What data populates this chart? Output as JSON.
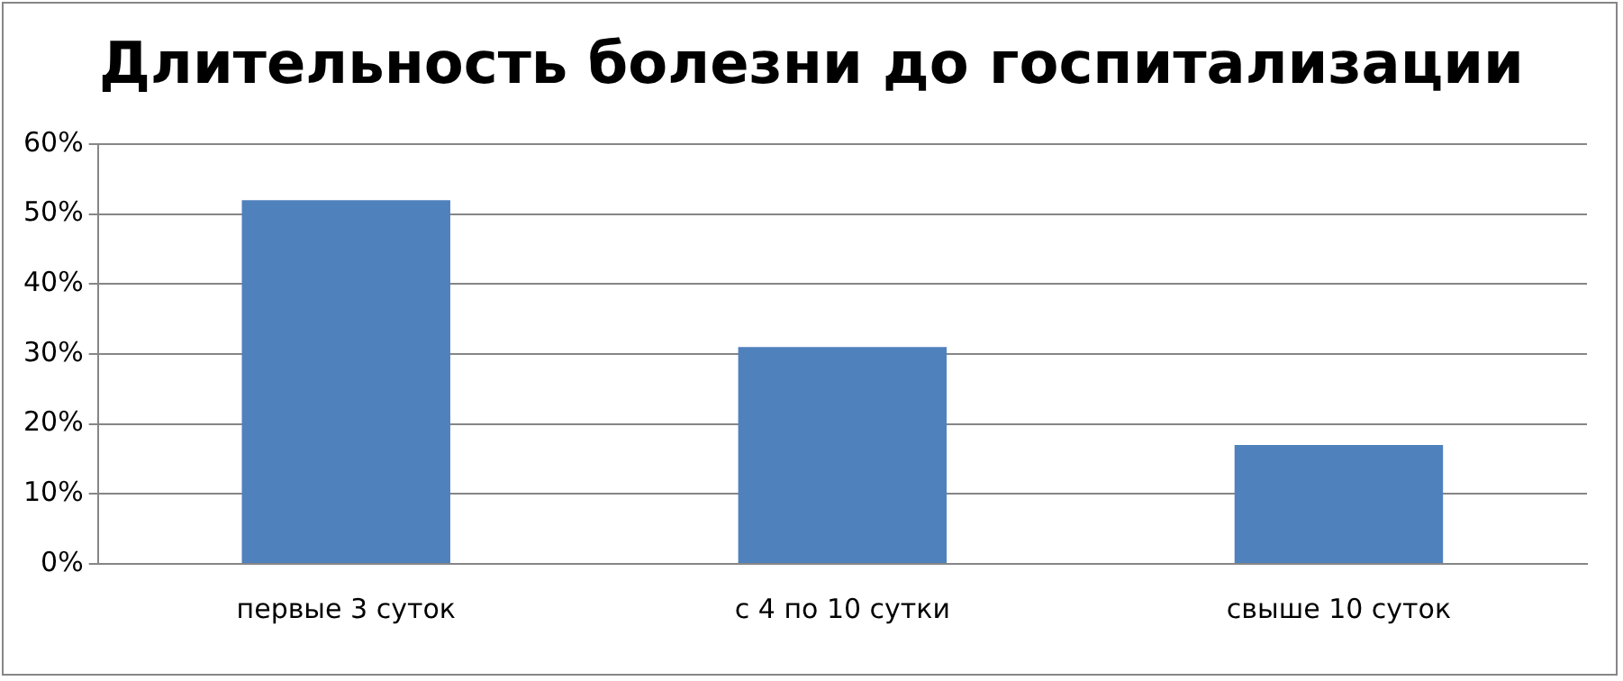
{
  "chart_data": {
    "type": "bar",
    "title": "Длительность болезни до госпитализации",
    "categories": [
      "первые 3 суток",
      "с 4 по 10 сутки",
      "свыше 10 суток"
    ],
    "values": [
      52,
      31,
      17
    ],
    "color": "#4f81bd",
    "ylim": [
      0,
      60
    ],
    "yticks": [
      {
        "value": 0,
        "label": "0%"
      },
      {
        "value": 10,
        "label": "10%"
      },
      {
        "value": 20,
        "label": "20%"
      },
      {
        "value": 30,
        "label": "30%"
      },
      {
        "value": 40,
        "label": "40%"
      },
      {
        "value": 50,
        "label": "50%"
      },
      {
        "value": 60,
        "label": "60%"
      }
    ],
    "grid": "y",
    "legend": false
  }
}
